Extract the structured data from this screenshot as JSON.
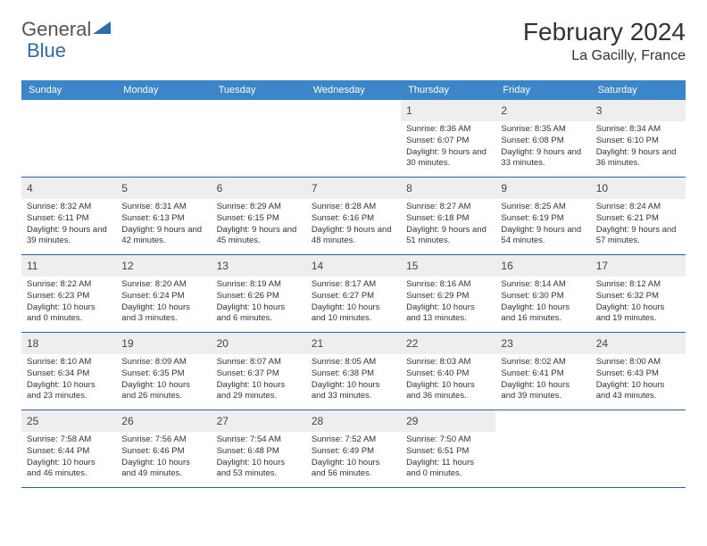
{
  "logo": {
    "text1": "General",
    "text2": "Blue"
  },
  "title": "February 2024",
  "location": "La Gacilly, France",
  "colors": {
    "header_bg": "#3a86c8",
    "border": "#2962a8",
    "daynum_bg": "#eeeeee",
    "logo_blue": "#2a6db0"
  },
  "weekdays": [
    "Sunday",
    "Monday",
    "Tuesday",
    "Wednesday",
    "Thursday",
    "Friday",
    "Saturday"
  ],
  "weeks": [
    [
      null,
      null,
      null,
      null,
      {
        "n": "1",
        "sr": "8:36 AM",
        "ss": "6:07 PM",
        "dl": "9 hours and 30 minutes."
      },
      {
        "n": "2",
        "sr": "8:35 AM",
        "ss": "6:08 PM",
        "dl": "9 hours and 33 minutes."
      },
      {
        "n": "3",
        "sr": "8:34 AM",
        "ss": "6:10 PM",
        "dl": "9 hours and 36 minutes."
      }
    ],
    [
      {
        "n": "4",
        "sr": "8:32 AM",
        "ss": "6:11 PM",
        "dl": "9 hours and 39 minutes."
      },
      {
        "n": "5",
        "sr": "8:31 AM",
        "ss": "6:13 PM",
        "dl": "9 hours and 42 minutes."
      },
      {
        "n": "6",
        "sr": "8:29 AM",
        "ss": "6:15 PM",
        "dl": "9 hours and 45 minutes."
      },
      {
        "n": "7",
        "sr": "8:28 AM",
        "ss": "6:16 PM",
        "dl": "9 hours and 48 minutes."
      },
      {
        "n": "8",
        "sr": "8:27 AM",
        "ss": "6:18 PM",
        "dl": "9 hours and 51 minutes."
      },
      {
        "n": "9",
        "sr": "8:25 AM",
        "ss": "6:19 PM",
        "dl": "9 hours and 54 minutes."
      },
      {
        "n": "10",
        "sr": "8:24 AM",
        "ss": "6:21 PM",
        "dl": "9 hours and 57 minutes."
      }
    ],
    [
      {
        "n": "11",
        "sr": "8:22 AM",
        "ss": "6:23 PM",
        "dl": "10 hours and 0 minutes."
      },
      {
        "n": "12",
        "sr": "8:20 AM",
        "ss": "6:24 PM",
        "dl": "10 hours and 3 minutes."
      },
      {
        "n": "13",
        "sr": "8:19 AM",
        "ss": "6:26 PM",
        "dl": "10 hours and 6 minutes."
      },
      {
        "n": "14",
        "sr": "8:17 AM",
        "ss": "6:27 PM",
        "dl": "10 hours and 10 minutes."
      },
      {
        "n": "15",
        "sr": "8:16 AM",
        "ss": "6:29 PM",
        "dl": "10 hours and 13 minutes."
      },
      {
        "n": "16",
        "sr": "8:14 AM",
        "ss": "6:30 PM",
        "dl": "10 hours and 16 minutes."
      },
      {
        "n": "17",
        "sr": "8:12 AM",
        "ss": "6:32 PM",
        "dl": "10 hours and 19 minutes."
      }
    ],
    [
      {
        "n": "18",
        "sr": "8:10 AM",
        "ss": "6:34 PM",
        "dl": "10 hours and 23 minutes."
      },
      {
        "n": "19",
        "sr": "8:09 AM",
        "ss": "6:35 PM",
        "dl": "10 hours and 26 minutes."
      },
      {
        "n": "20",
        "sr": "8:07 AM",
        "ss": "6:37 PM",
        "dl": "10 hours and 29 minutes."
      },
      {
        "n": "21",
        "sr": "8:05 AM",
        "ss": "6:38 PM",
        "dl": "10 hours and 33 minutes."
      },
      {
        "n": "22",
        "sr": "8:03 AM",
        "ss": "6:40 PM",
        "dl": "10 hours and 36 minutes."
      },
      {
        "n": "23",
        "sr": "8:02 AM",
        "ss": "6:41 PM",
        "dl": "10 hours and 39 minutes."
      },
      {
        "n": "24",
        "sr": "8:00 AM",
        "ss": "6:43 PM",
        "dl": "10 hours and 43 minutes."
      }
    ],
    [
      {
        "n": "25",
        "sr": "7:58 AM",
        "ss": "6:44 PM",
        "dl": "10 hours and 46 minutes."
      },
      {
        "n": "26",
        "sr": "7:56 AM",
        "ss": "6:46 PM",
        "dl": "10 hours and 49 minutes."
      },
      {
        "n": "27",
        "sr": "7:54 AM",
        "ss": "6:48 PM",
        "dl": "10 hours and 53 minutes."
      },
      {
        "n": "28",
        "sr": "7:52 AM",
        "ss": "6:49 PM",
        "dl": "10 hours and 56 minutes."
      },
      {
        "n": "29",
        "sr": "7:50 AM",
        "ss": "6:51 PM",
        "dl": "11 hours and 0 minutes."
      },
      null,
      null
    ]
  ],
  "labels": {
    "sunrise": "Sunrise: ",
    "sunset": "Sunset: ",
    "daylight": "Daylight: "
  }
}
